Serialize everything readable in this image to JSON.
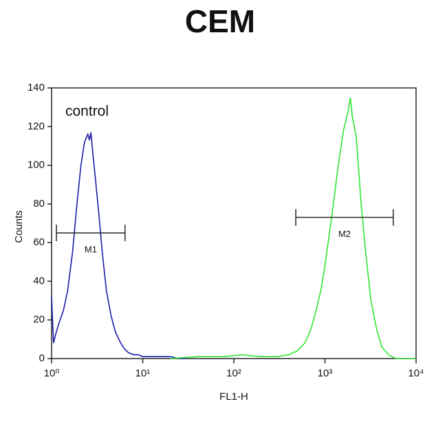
{
  "chart_data": {
    "type": "line",
    "title": "CEM",
    "x_label": "FL1-H",
    "y_label": "Counts",
    "annotation": "control",
    "xscale": "log",
    "xlim": [
      1,
      10000
    ],
    "xticks": [
      {
        "value": 1,
        "label": "10⁰"
      },
      {
        "value": 10,
        "label": "10¹"
      },
      {
        "value": 100,
        "label": "10²"
      },
      {
        "value": 1000,
        "label": "10³"
      },
      {
        "value": 10000,
        "label": "10⁴"
      }
    ],
    "ylim": [
      0,
      140
    ],
    "yticks": [
      0,
      20,
      40,
      60,
      80,
      100,
      120,
      140
    ],
    "series": [
      {
        "name": "control",
        "color": "#1a1aa6",
        "x": [
          1,
          1.05,
          1.1,
          1.2,
          1.35,
          1.5,
          1.7,
          1.9,
          2.1,
          2.3,
          2.5,
          2.6,
          2.7,
          2.85,
          3.0,
          3.3,
          3.6,
          4.0,
          4.5,
          5.0,
          5.6,
          6.3,
          7.0,
          8.0,
          9.0,
          10,
          12,
          15,
          20,
          25,
          30
        ],
        "values": [
          32,
          8,
          12,
          18,
          25,
          35,
          55,
          80,
          100,
          112,
          116,
          113,
          117,
          105,
          95,
          75,
          55,
          35,
          22,
          14,
          9,
          5,
          3,
          2,
          2,
          1,
          1,
          1,
          1,
          0,
          0
        ]
      },
      {
        "name": "CEM",
        "color": "#2ee62e",
        "x": [
          20,
          40,
          80,
          120,
          200,
          300,
          400,
          500,
          600,
          700,
          800,
          900,
          1000,
          1200,
          1400,
          1600,
          1800,
          1900,
          2000,
          2200,
          2500,
          2800,
          3200,
          3700,
          4200,
          5000,
          6000,
          8000,
          10000
        ],
        "values": [
          0,
          1,
          1,
          2,
          1,
          1,
          2,
          4,
          8,
          15,
          25,
          35,
          48,
          75,
          100,
          118,
          128,
          135,
          125,
          115,
          80,
          55,
          30,
          15,
          6,
          2,
          0,
          0,
          0
        ]
      }
    ],
    "gates": [
      {
        "label": "M1",
        "range": [
          1.13,
          6.4
        ],
        "y": 65
      },
      {
        "label": "M2",
        "range": [
          479,
          5620
        ],
        "y": 73
      }
    ]
  }
}
